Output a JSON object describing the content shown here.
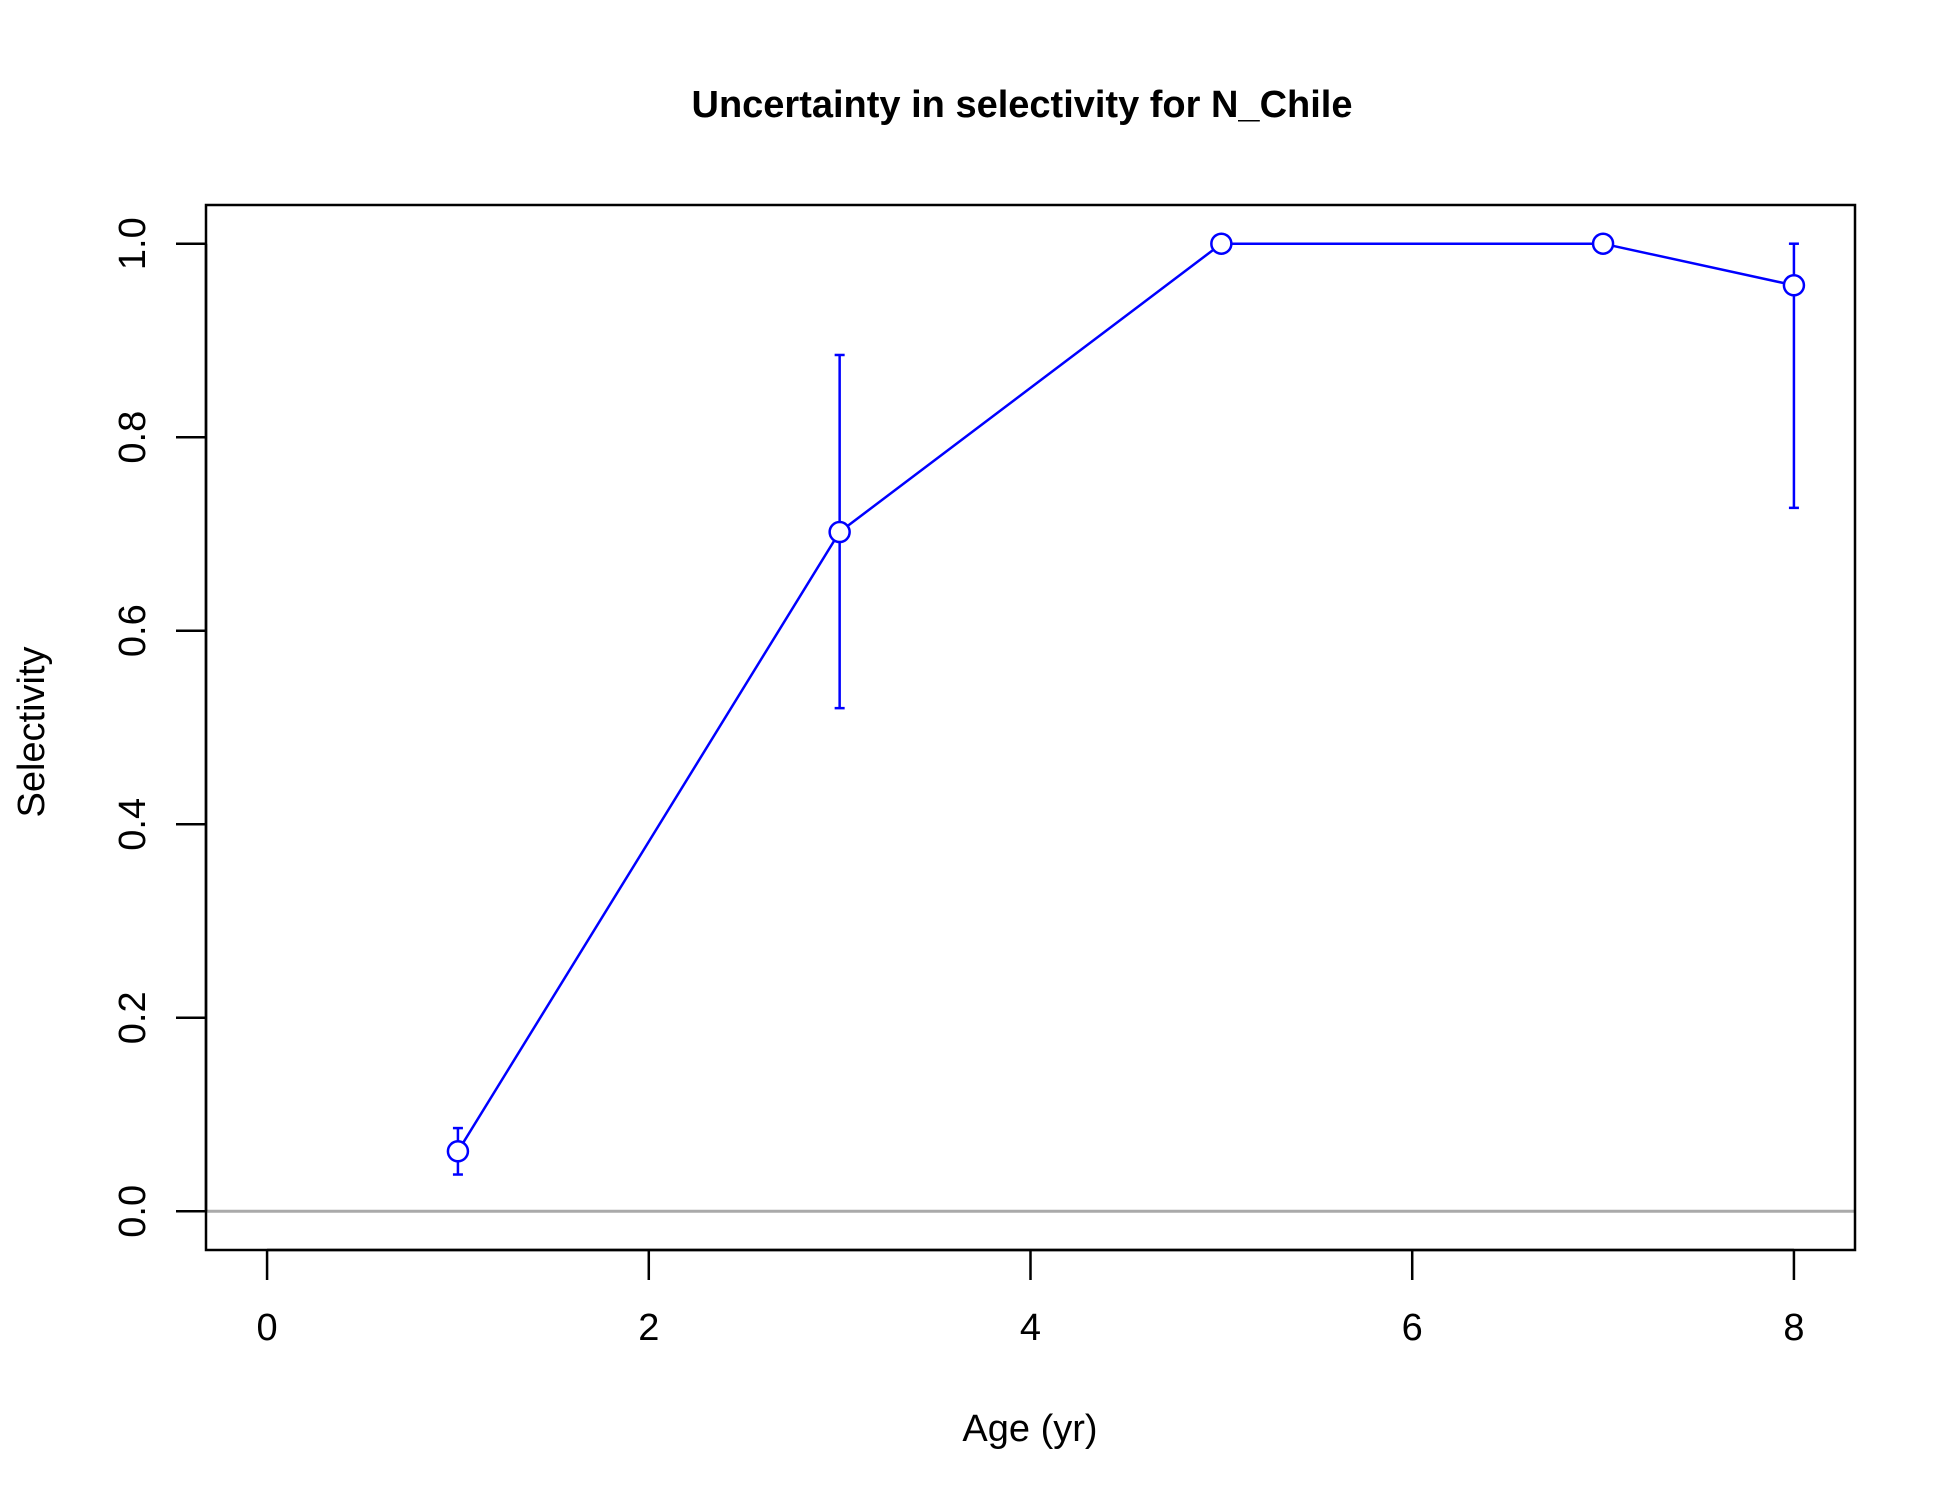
{
  "chart_data": {
    "type": "line",
    "title": "Uncertainty in selectivity for N_Chile",
    "xlabel": "Age (yr)",
    "ylabel": "Selectivity",
    "xlim": [
      -0.32,
      8.32
    ],
    "ylim": [
      -0.04,
      1.04
    ],
    "x_ticks": [
      0,
      2,
      4,
      6,
      8
    ],
    "y_ticks": [
      0.0,
      0.2,
      0.4,
      0.6,
      0.8,
      1.0
    ],
    "x_tick_labels": [
      "0",
      "2",
      "4",
      "6",
      "8"
    ],
    "y_tick_labels": [
      "0.0",
      "0.2",
      "0.4",
      "0.6",
      "0.8",
      "1.0"
    ],
    "grid": false,
    "reference_line": {
      "y": 0,
      "color": "#aaaaaa"
    },
    "series": [
      {
        "color": "#0000ff",
        "marker": "open-circle",
        "points": [
          {
            "x": 1,
            "y": 0.062,
            "lower": 0.038,
            "upper": 0.086
          },
          {
            "x": 3,
            "y": 0.702,
            "lower": 0.52,
            "upper": 0.885
          },
          {
            "x": 5,
            "y": 1.0
          },
          {
            "x": 7,
            "y": 1.0
          },
          {
            "x": 8,
            "y": 0.957,
            "lower": 0.727,
            "upper": 1.0
          }
        ]
      }
    ]
  }
}
